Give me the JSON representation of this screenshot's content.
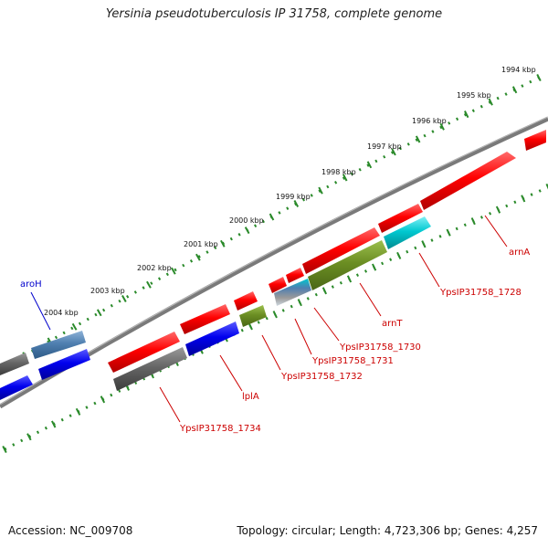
{
  "title": "Yersinia pseudotuberculosis IP 31758, complete genome",
  "footer": {
    "accession": "Accession: NC_009708",
    "summary": "Topology: circular; Length: 4,723,306 bp; Genes: 4,257"
  },
  "scale": {
    "ticks": [
      "1994 kbp",
      "1995 kbp",
      "1996 kbp",
      "1997 kbp",
      "1998 kbp",
      "1999 kbp",
      "2000 kbp",
      "2001 kbp",
      "2002 kbp",
      "2003 kbp",
      "2004 kbp"
    ]
  },
  "genes": [
    {
      "name": "arnA",
      "color": "#d40000"
    },
    {
      "name": "YpsIP31758_1728",
      "color": "#d40000"
    },
    {
      "name": "arnT",
      "color": "#d40000"
    },
    {
      "name": "YpsIP31758_1730",
      "color": "#d40000"
    },
    {
      "name": "YpsIP31758_1731",
      "color": "#d40000"
    },
    {
      "name": "YpsIP31758_1732",
      "color": "#d40000"
    },
    {
      "name": "lplA",
      "color": "#d40000"
    },
    {
      "name": "YpsIP31758_1734",
      "color": "#d40000"
    },
    {
      "name": "aroH",
      "color": "#0000cc"
    }
  ],
  "colors": {
    "backbone": "#777777",
    "tick_track": "#2a8a2a",
    "feature_red": "#ff0000",
    "feature_blue": "#0000ee",
    "feature_gray": "#666666",
    "feature_cyan": "#00c8d0",
    "feature_olive": "#6b8e23",
    "feature_steelblue": "#4f7fb0"
  }
}
